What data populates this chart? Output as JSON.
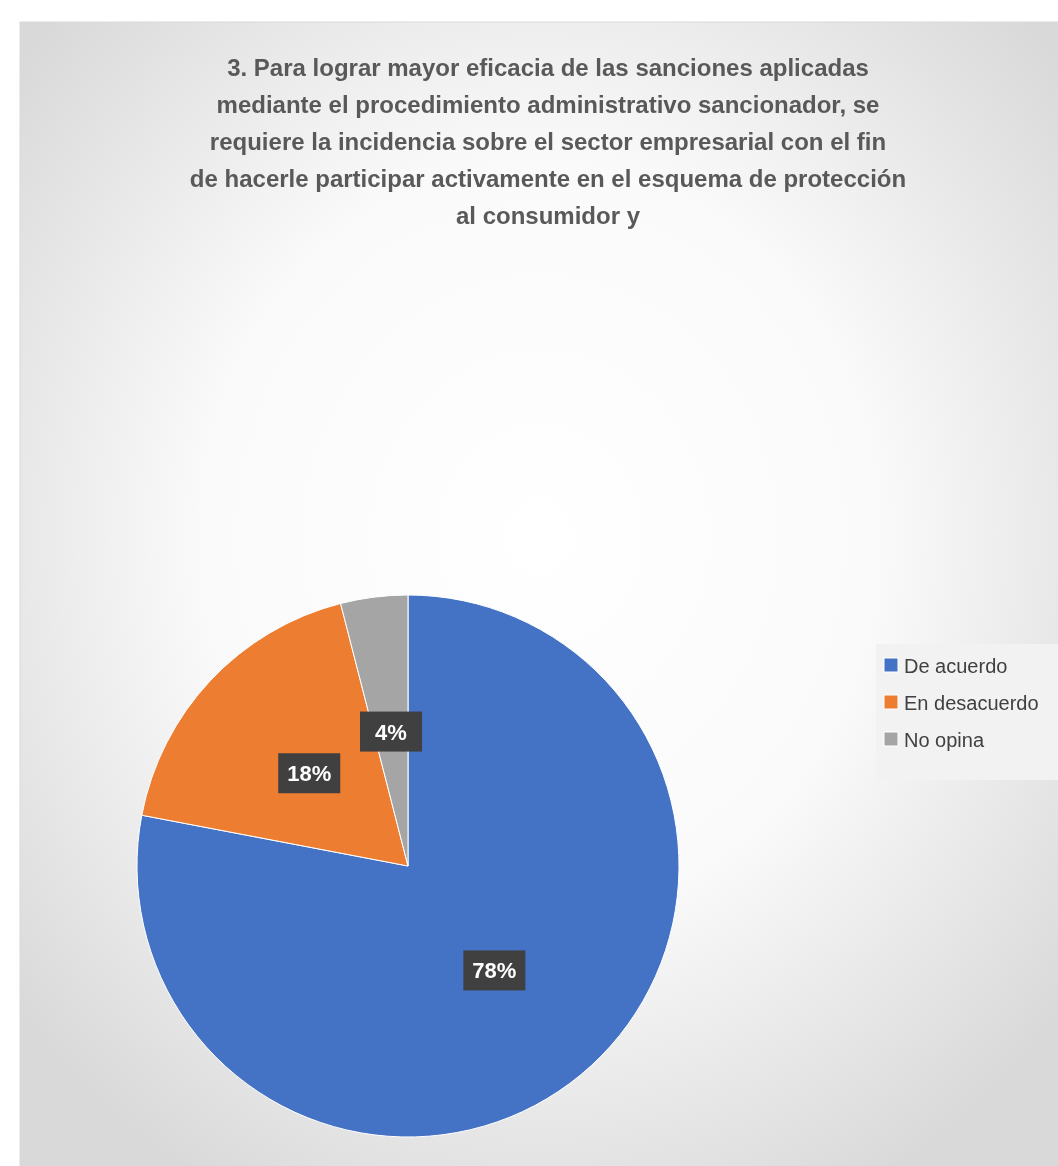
{
  "chart_data": {
    "type": "pie",
    "title": "3. Para lograr mayor eficacia de las sanciones aplicadas mediante el procedimiento administrativo sancionador, se requiere la incidencia sobre el sector empresarial con el fin de hacerle participar activamente en el esquema de protección al consumidor y",
    "categories": [
      "De acuerdo",
      "En desacuerdo",
      "No opina"
    ],
    "values": [
      78,
      18,
      4
    ],
    "colors": [
      "#4472c4",
      "#ed7d31",
      "#a5a5a5"
    ],
    "value_labels": [
      "78%",
      "18%",
      "4%"
    ],
    "legend": "right"
  }
}
